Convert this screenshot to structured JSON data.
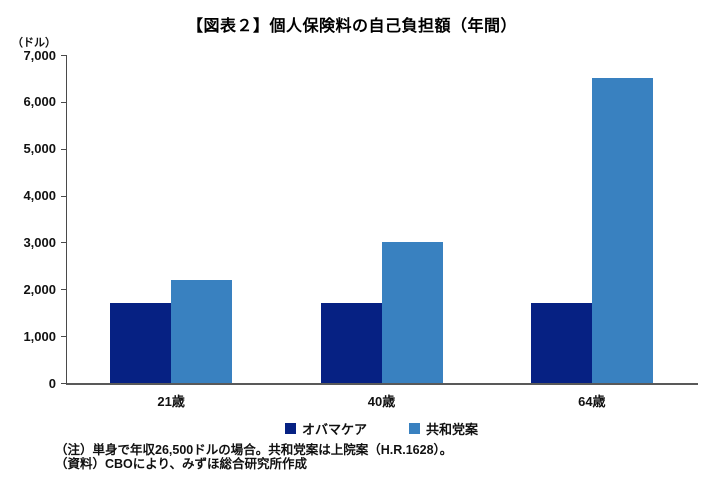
{
  "title": "【図表２】個人保険料の自己負担額（年間）",
  "y_axis": {
    "unit_label": "（ドル）"
  },
  "chart_data": {
    "type": "bar",
    "title": "【図表２】個人保険料の自己負担額（年間）",
    "categories": [
      "21歳",
      "40歳",
      "64歳"
    ],
    "series": [
      {
        "name": "オバマケア",
        "color": "#062183",
        "values": [
          1700,
          1700,
          1700
        ]
      },
      {
        "name": "共和党案",
        "color": "#3981C0",
        "values": [
          2200,
          3000,
          6500
        ]
      }
    ],
    "ylabel": "（ドル）",
    "ylim": [
      0,
      7000
    ],
    "ytick_interval": 1000,
    "ytick_labels": [
      "0",
      "1,000",
      "2,000",
      "3,000",
      "4,000",
      "5,000",
      "6,000",
      "7,000"
    ],
    "grid": false,
    "legend_position": "bottom"
  },
  "notes": {
    "line1": "（注）単身で年収26,500ドルの場合。共和党案は上院案（H.R.1628）。",
    "line2": "（資料）CBOにより、みずほ総合研究所作成"
  }
}
